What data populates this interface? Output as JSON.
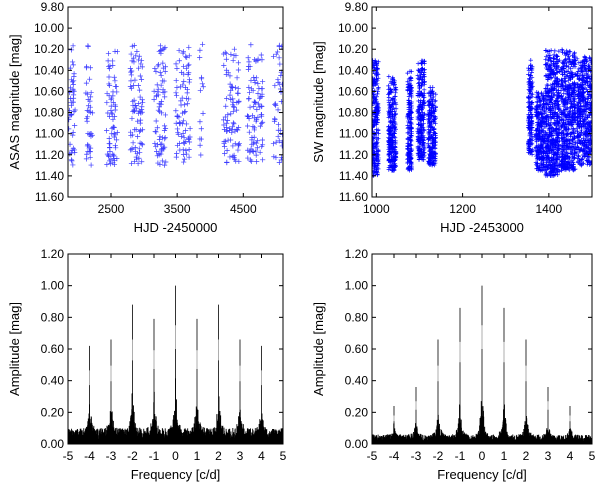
{
  "chart_data": [
    {
      "type": "scatter",
      "marker": "plus",
      "color": "#3a3aff",
      "xlabel": "HJD -2450000",
      "ylabel": "ASAS magnitude [mag]",
      "xlim": [
        1850,
        5100
      ],
      "ylim": [
        11.6,
        9.8
      ],
      "y_inverted": true,
      "xticks": [
        2500,
        3500,
        4500
      ],
      "yticks": [
        9.8,
        10.0,
        10.2,
        10.4,
        10.6,
        10.8,
        11.0,
        11.2,
        11.4,
        11.6
      ],
      "ytick_labels": [
        "9.80",
        "10.00",
        "10.20",
        "10.40",
        "10.60",
        "10.80",
        "11.00",
        "11.20",
        "11.40",
        "11.60"
      ],
      "seasons": [
        {
          "x_range": [
            1860,
            1960
          ],
          "count": 45
        },
        {
          "x_range": [
            2120,
            2220
          ],
          "count": 40
        },
        {
          "x_range": [
            2430,
            2600
          ],
          "count": 70
        },
        {
          "x_range": [
            2790,
            2980
          ],
          "count": 80
        },
        {
          "x_range": [
            3150,
            3330
          ],
          "count": 75
        },
        {
          "x_range": [
            3480,
            3700
          ],
          "count": 80
        },
        {
          "x_range": [
            3840,
            3900
          ],
          "count": 15
        },
        {
          "x_range": [
            4200,
            4440
          ],
          "count": 85
        },
        {
          "x_range": [
            4560,
            4800
          ],
          "count": 90
        },
        {
          "x_range": [
            4950,
            5100
          ],
          "count": 40
        }
      ],
      "y_range": [
        10.15,
        11.3
      ]
    },
    {
      "type": "scatter",
      "marker": "plus",
      "color": "#0000ff",
      "xlabel": "HJD -2453000",
      "ylabel": "SW magnitude [mag]",
      "xlim": [
        990,
        1500
      ],
      "ylim": [
        11.6,
        9.8
      ],
      "y_inverted": true,
      "xticks": [
        1000,
        1200,
        1400
      ],
      "yticks": [
        9.8,
        10.0,
        10.2,
        10.4,
        10.6,
        10.8,
        11.0,
        11.2,
        11.4,
        11.6
      ],
      "ytick_labels": [
        "9.80",
        "10.00",
        "10.20",
        "10.40",
        "10.60",
        "10.80",
        "11.00",
        "11.20",
        "11.40",
        "11.60"
      ],
      "clusters": [
        {
          "x_range": [
            990,
            1005
          ],
          "y_range": [
            10.3,
            11.4
          ],
          "count": 240
        },
        {
          "x_range": [
            1028,
            1046
          ],
          "y_range": [
            10.45,
            11.35
          ],
          "count": 260
        },
        {
          "x_range": [
            1072,
            1082
          ],
          "y_range": [
            10.4,
            11.35
          ],
          "count": 180
        },
        {
          "x_range": [
            1096,
            1112
          ],
          "y_range": [
            10.3,
            11.25
          ],
          "count": 240
        },
        {
          "x_range": [
            1120,
            1138
          ],
          "y_range": [
            10.55,
            11.3
          ],
          "count": 220
        },
        {
          "x_range": [
            1352,
            1362
          ],
          "y_range": [
            10.3,
            11.2
          ],
          "count": 150
        },
        {
          "x_range": [
            1370,
            1390
          ],
          "y_range": [
            10.6,
            11.35
          ],
          "count": 260
        },
        {
          "x_range": [
            1392,
            1425
          ],
          "y_range": [
            10.2,
            11.4
          ],
          "count": 520
        },
        {
          "x_range": [
            1428,
            1462
          ],
          "y_range": [
            10.2,
            11.35
          ],
          "count": 500
        },
        {
          "x_range": [
            1465,
            1500
          ],
          "y_range": [
            10.25,
            11.3
          ],
          "count": 460
        }
      ]
    },
    {
      "type": "spectrum",
      "xlabel": "Frequency [c/d]",
      "ylabel": "Amplitude [mag]",
      "xlim": [
        -5,
        5
      ],
      "ylim": [
        0,
        1.2
      ],
      "xticks": [
        -5,
        -4,
        -3,
        -2,
        -1,
        0,
        1,
        2,
        3,
        4,
        5
      ],
      "yticks": [
        0.0,
        0.2,
        0.4,
        0.6,
        0.8,
        1.0,
        1.2
      ],
      "ytick_labels": [
        "0.00",
        "0.20",
        "0.40",
        "0.60",
        "0.80",
        "1.00",
        "1.20"
      ],
      "peaks": [
        {
          "f": -4.0,
          "a": 0.62
        },
        {
          "f": -3.0,
          "a": 0.66
        },
        {
          "f": -2.0,
          "a": 0.88
        },
        {
          "f": -1.0,
          "a": 0.79
        },
        {
          "f": 0.0,
          "a": 1.0
        },
        {
          "f": 1.0,
          "a": 0.79
        },
        {
          "f": 2.0,
          "a": 0.88
        },
        {
          "f": 3.0,
          "a": 0.66
        },
        {
          "f": 4.0,
          "a": 0.62
        }
      ],
      "noise_level": 0.1
    },
    {
      "type": "spectrum",
      "xlabel": "Frequency [c/d]",
      "ylabel": "Amplitude [mag]",
      "xlim": [
        -5,
        5
      ],
      "ylim": [
        0,
        1.2
      ],
      "xticks": [
        -5,
        -4,
        -3,
        -2,
        -1,
        0,
        1,
        2,
        3,
        4,
        5
      ],
      "yticks": [
        0.0,
        0.2,
        0.4,
        0.6,
        0.8,
        1.0,
        1.2
      ],
      "ytick_labels": [
        "0.00",
        "0.20",
        "0.40",
        "0.60",
        "0.80",
        "1.00",
        "1.20"
      ],
      "peaks": [
        {
          "f": -4.0,
          "a": 0.24
        },
        {
          "f": -3.0,
          "a": 0.36
        },
        {
          "f": -2.0,
          "a": 0.66
        },
        {
          "f": -1.0,
          "a": 0.86
        },
        {
          "f": 0.0,
          "a": 1.0
        },
        {
          "f": 1.0,
          "a": 0.86
        },
        {
          "f": 2.0,
          "a": 0.66
        },
        {
          "f": 3.0,
          "a": 0.36
        },
        {
          "f": 4.0,
          "a": 0.24
        }
      ],
      "noise_level": 0.06
    }
  ]
}
